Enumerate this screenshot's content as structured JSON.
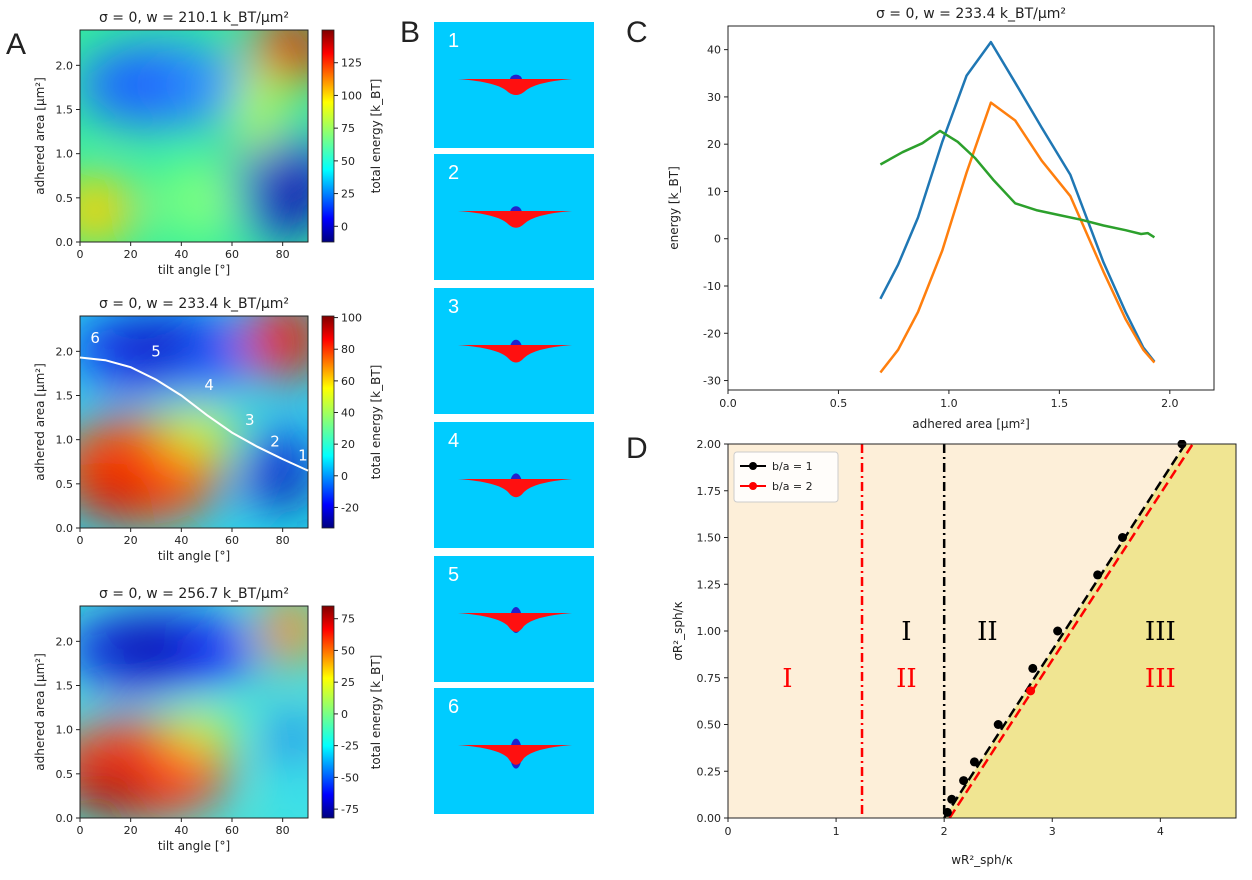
{
  "panel_letters": {
    "a": "A",
    "b": "B",
    "c": "C",
    "d": "D"
  },
  "frames": [
    "1",
    "2",
    "3",
    "4",
    "5",
    "6"
  ],
  "heatmap_labels": {
    "xlabel": "tilt angle [$^\\circ$]",
    "ylabel": "adhered area [$\\mu m^2$]",
    "cbar_label": "total energy [$k_BT$]"
  },
  "chart_data": [
    {
      "type": "heatmap",
      "panel": "A",
      "title": "σ = 0, w = 210.1 k_BT/μm²",
      "xlabel": "tilt angle [°]",
      "ylabel": "adhered area [μm²]",
      "xlim": [
        0,
        90
      ],
      "ylim": [
        0,
        2.4
      ],
      "xticks": [
        "0",
        "20",
        "40",
        "60",
        "80"
      ],
      "yticks": [
        "0.0",
        "0.5",
        "1.0",
        "1.5",
        "2.0"
      ],
      "colorbar": {
        "label": "total energy [k_BT]",
        "ticks": [
          "0",
          "25",
          "50",
          "75",
          "100",
          "125"
        ],
        "range": [
          -12,
          150
        ]
      },
      "features": [
        {
          "x": 85,
          "y": 2.25,
          "energy": 145
        },
        {
          "x": 82,
          "y": 0.45,
          "energy": -10
        },
        {
          "x": 5,
          "y": 0.3,
          "energy": 95
        },
        {
          "x": 15,
          "y": 1.85,
          "energy": 5
        }
      ]
    },
    {
      "type": "heatmap",
      "panel": "A",
      "title": "σ = 0, w = 233.4 k_BT/μm²",
      "xlabel": "tilt angle [°]",
      "ylabel": "adhered area [μm²]",
      "xlim": [
        0,
        90
      ],
      "ylim": [
        0,
        2.4
      ],
      "xticks": [
        "0",
        "20",
        "40",
        "60",
        "80"
      ],
      "yticks": [
        "0.0",
        "0.5",
        "1.0",
        "1.5",
        "2.0"
      ],
      "colorbar": {
        "label": "total energy [k_BT]",
        "ticks": [
          "-20",
          "0",
          "20",
          "40",
          "60",
          "80",
          "100"
        ],
        "range": [
          -33,
          101
        ]
      },
      "path": {
        "x": [
          0,
          10,
          20,
          30,
          40,
          50,
          60,
          70,
          80,
          90
        ],
        "y": [
          1.93,
          1.9,
          1.82,
          1.68,
          1.5,
          1.28,
          1.08,
          0.92,
          0.78,
          0.65
        ],
        "labels": [
          {
            "text": "6",
            "x": 6,
            "y": 2.15
          },
          {
            "text": "5",
            "x": 30,
            "y": 2.0
          },
          {
            "text": "4",
            "x": 51,
            "y": 1.62
          },
          {
            "text": "3",
            "x": 67,
            "y": 1.22
          },
          {
            "text": "2",
            "x": 77,
            "y": 0.98
          },
          {
            "text": "1",
            "x": 88,
            "y": 0.82
          }
        ]
      }
    },
    {
      "type": "heatmap",
      "panel": "A",
      "title": "σ = 0, w = 256.7 k_BT/μm²",
      "xlabel": "tilt angle [°]",
      "ylabel": "adhered area [μm²]",
      "xlim": [
        0,
        90
      ],
      "ylim": [
        0,
        2.4
      ],
      "xticks": [
        "0",
        "20",
        "40",
        "60",
        "80"
      ],
      "yticks": [
        "0.0",
        "0.5",
        "1.0",
        "1.5",
        "2.0"
      ],
      "colorbar": {
        "label": "total energy [k_BT]",
        "ticks": [
          "-75",
          "-50",
          "-25",
          "0",
          "25",
          "50",
          "75"
        ],
        "range": [
          -82,
          85
        ]
      }
    },
    {
      "type": "line",
      "panel": "C",
      "title": "σ = 0, w = 233.4 k_BT/μm²",
      "xlabel": "adhered area [μm²]",
      "ylabel": "energy [k_BT]",
      "xlim": [
        0.0,
        2.2
      ],
      "ylim": [
        -32,
        45
      ],
      "xticks": [
        "0.0",
        "0.5",
        "1.0",
        "1.5",
        "2.0"
      ],
      "yticks": [
        "-30",
        "-20",
        "-10",
        "0",
        "10",
        "20",
        "30",
        "40"
      ],
      "series": [
        {
          "color": "#1f77b4",
          "x": [
            0.69,
            0.77,
            0.86,
            0.97,
            1.08,
            1.19,
            1.3,
            1.42,
            1.55,
            1.7,
            1.8,
            1.88,
            1.93
          ],
          "y": [
            -12.7,
            -5.5,
            4.5,
            20.5,
            34.5,
            41.6,
            33.0,
            23.5,
            13.5,
            -5.0,
            -15.5,
            -23.0,
            -26.0
          ]
        },
        {
          "color": "#ff7f0e",
          "x": [
            0.69,
            0.77,
            0.86,
            0.97,
            1.08,
            1.19,
            1.3,
            1.42,
            1.55,
            1.7,
            1.8,
            1.88,
            1.93
          ],
          "y": [
            -28.3,
            -23.5,
            -15.5,
            -2.5,
            14.0,
            28.8,
            25.0,
            16.5,
            9.0,
            -7.0,
            -17.0,
            -23.5,
            -26.2
          ]
        },
        {
          "color": "#2ca02c",
          "x": [
            0.69,
            0.79,
            0.88,
            0.96,
            1.04,
            1.12,
            1.2,
            1.3,
            1.4,
            1.5,
            1.6,
            1.7,
            1.8,
            1.87,
            1.9,
            1.93
          ],
          "y": [
            15.7,
            18.3,
            20.2,
            22.8,
            20.5,
            17.0,
            12.5,
            7.5,
            6.0,
            5.0,
            4.0,
            2.8,
            1.8,
            1.0,
            1.2,
            0.3
          ]
        }
      ]
    },
    {
      "type": "scatter",
      "panel": "D",
      "xlabel": "wR²_sph/κ",
      "ylabel": "σR²_sph/κ",
      "xlim": [
        0,
        4.7
      ],
      "ylim": [
        0,
        2.0
      ],
      "xticks": [
        "0",
        "1",
        "2",
        "3",
        "4"
      ],
      "yticks": [
        "0.00",
        "0.25",
        "0.50",
        "0.75",
        "1.00",
        "1.25",
        "1.50",
        "1.75",
        "2.00"
      ],
      "legend": "top-left",
      "series": [
        {
          "name": "b/a = 1",
          "color": "#000000",
          "points_x": [
            2.03,
            2.07,
            2.18,
            2.28,
            2.5,
            2.82,
            3.05,
            3.42,
            3.65,
            4.2
          ],
          "points_y": [
            0.03,
            0.1,
            0.2,
            0.3,
            0.5,
            0.8,
            1.0,
            1.3,
            1.5,
            2.0
          ],
          "boundary_x": 2.0,
          "fit_line": [
            [
              2.0,
              0.0
            ],
            [
              4.23,
              2.0
            ]
          ]
        },
        {
          "name": "b/a = 2",
          "color": "#ff0000",
          "points_x": [
            2.8
          ],
          "points_y": [
            0.68
          ],
          "boundary_x": 1.24,
          "fit_line": [
            [
              2.05,
              0.0
            ],
            [
              4.3,
              2.0
            ]
          ]
        }
      ],
      "region_labels": [
        {
          "text": "I",
          "color": "#ff0000",
          "x": 0.55,
          "y": 0.75
        },
        {
          "text": "II",
          "color": "#ff0000",
          "x": 1.65,
          "y": 0.75
        },
        {
          "text": "I",
          "color": "#000000",
          "x": 1.65,
          "y": 1.0
        },
        {
          "text": "II",
          "color": "#000000",
          "x": 2.4,
          "y": 1.0
        },
        {
          "text": "III",
          "color": "#000000",
          "x": 4.0,
          "y": 1.0
        },
        {
          "text": "III",
          "color": "#ff0000",
          "x": 4.0,
          "y": 0.75
        }
      ],
      "colors": {
        "light_region": "#FDEFD9",
        "dark_region": "#F0E592"
      }
    }
  ]
}
